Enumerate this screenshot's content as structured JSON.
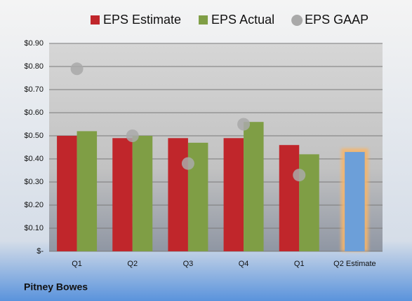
{
  "chart_data": {
    "type": "bar",
    "categories": [
      "Q1",
      "Q2",
      "Q3",
      "Q4",
      "Q1",
      "Q2 Estimate"
    ],
    "series": [
      {
        "name": "EPS Estimate",
        "color": "#c0262b",
        "values": [
          0.5,
          0.49,
          0.49,
          0.49,
          0.46,
          null
        ]
      },
      {
        "name": "EPS Actual",
        "color": "#7f9e45",
        "values": [
          0.52,
          0.5,
          0.47,
          0.56,
          0.42,
          0.43
        ]
      },
      {
        "name": "EPS GAAP",
        "color": "#a9a9a9",
        "marker": "circle",
        "values": [
          0.79,
          0.5,
          0.38,
          0.55,
          0.33,
          null
        ]
      }
    ],
    "highlight": {
      "index": 5,
      "color": "#6c9fd9",
      "glow": "#f6b56a"
    },
    "ylim": [
      0,
      0.9
    ],
    "yticks": [
      {
        "value": 0,
        "label": "$-"
      },
      {
        "value": 0.1,
        "label": "$0.10"
      },
      {
        "value": 0.2,
        "label": "$0.20"
      },
      {
        "value": 0.3,
        "label": "$0.30"
      },
      {
        "value": 0.4,
        "label": "$0.40"
      },
      {
        "value": 0.5,
        "label": "$0.50"
      },
      {
        "value": 0.6,
        "label": "$0.60"
      },
      {
        "value": 0.7,
        "label": "$0.70"
      },
      {
        "value": 0.8,
        "label": "$0.80"
      },
      {
        "value": 0.9,
        "label": "$0.90"
      }
    ],
    "grid": true,
    "footer": "Pitney Bowes"
  }
}
